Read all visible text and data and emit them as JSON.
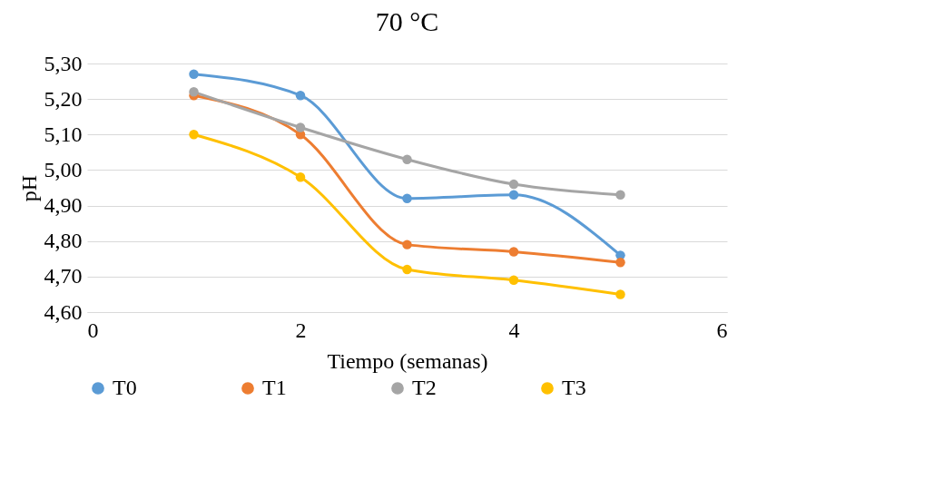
{
  "chart_data": {
    "type": "line",
    "title": "70 °C",
    "xlabel": "Tiempo (semanas)",
    "ylabel": "pH",
    "x": [
      1,
      2,
      3,
      4,
      5
    ],
    "series": [
      {
        "name": "T0",
        "color": "#5b9bd5",
        "values": [
          5.27,
          5.21,
          4.92,
          4.93,
          4.76
        ]
      },
      {
        "name": "T1",
        "color": "#ed7d31",
        "values": [
          5.21,
          5.1,
          4.79,
          4.77,
          4.74
        ]
      },
      {
        "name": "T2",
        "color": "#a5a5a5",
        "values": [
          5.22,
          5.12,
          5.03,
          4.96,
          4.93
        ]
      },
      {
        "name": "T3",
        "color": "#ffc000",
        "values": [
          5.1,
          4.98,
          4.72,
          4.69,
          4.65
        ]
      }
    ],
    "xlim": [
      0,
      6
    ],
    "xticks": [
      0,
      2,
      4,
      6
    ],
    "ylim": [
      4.6,
      5.3
    ],
    "yticks": [
      {
        "value": 4.6,
        "label": "4,60"
      },
      {
        "value": 4.7,
        "label": "4,70"
      },
      {
        "value": 4.8,
        "label": "4,80"
      },
      {
        "value": 4.9,
        "label": "4,90"
      },
      {
        "value": 5.0,
        "label": "5,00"
      },
      {
        "value": 5.1,
        "label": "5,10"
      },
      {
        "value": 5.2,
        "label": "5,20"
      },
      {
        "value": 5.3,
        "label": "5,30"
      }
    ],
    "grid": "y",
    "legend": "bottom",
    "marker": "circle",
    "line_style": "solid"
  }
}
